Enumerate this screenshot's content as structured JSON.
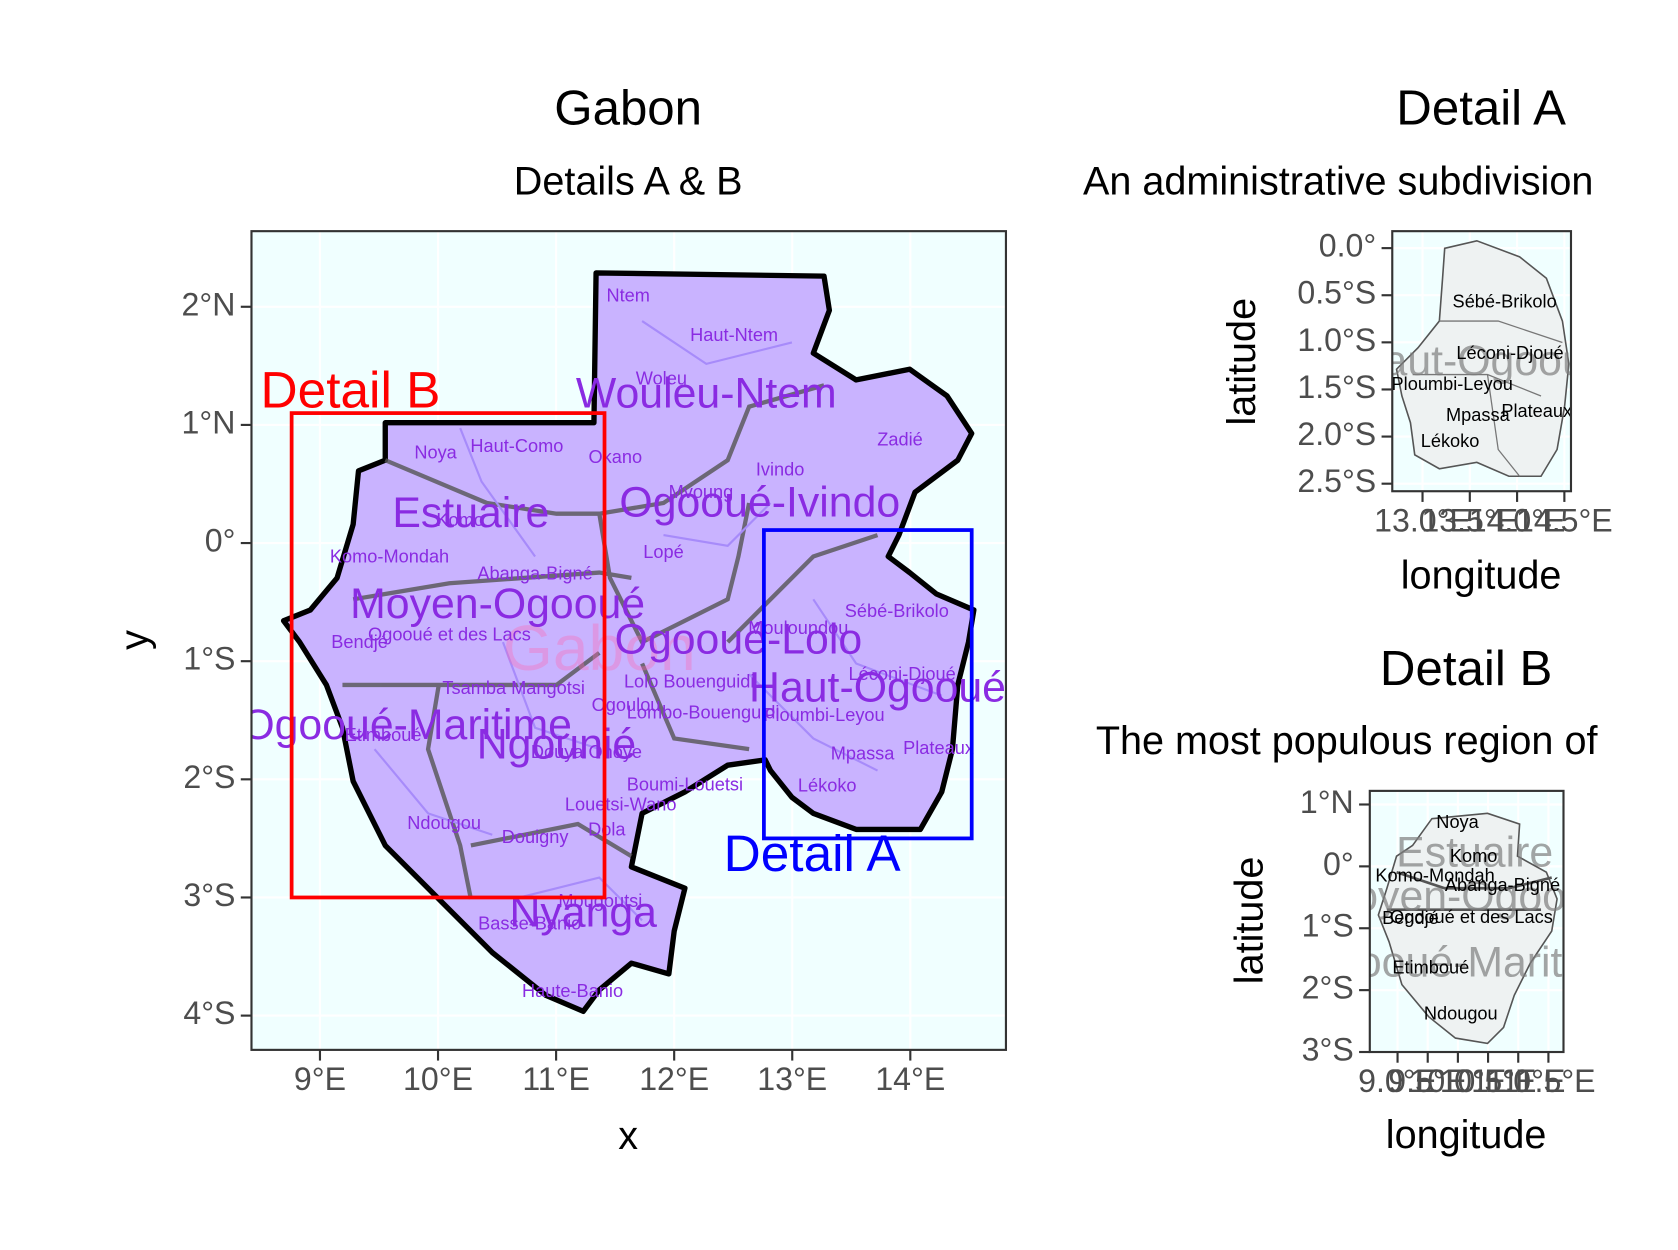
{
  "main_map": {
    "title": "Gabon",
    "subtitle": "Details A & B",
    "x_label": "x",
    "y_label": "y",
    "xlim": [
      8.42,
      14.81
    ],
    "ylim": [
      -4.29,
      2.64
    ],
    "xticks": [
      {
        "value": 9,
        "label": "9°E"
      },
      {
        "value": 10,
        "label": "10°E"
      },
      {
        "value": 11,
        "label": "11°E"
      },
      {
        "value": 12,
        "label": "12°E"
      },
      {
        "value": 13,
        "label": "13°E"
      },
      {
        "value": 14,
        "label": "14°E"
      }
    ],
    "yticks": [
      {
        "value": 2,
        "label": "2°N"
      },
      {
        "value": 1,
        "label": "1°N"
      },
      {
        "value": 0,
        "label": "0°"
      },
      {
        "value": -1,
        "label": "1°S"
      },
      {
        "value": -2,
        "label": "2°S"
      },
      {
        "value": -3,
        "label": "3°S"
      },
      {
        "value": -4,
        "label": "4°S"
      }
    ],
    "country_label": "Gabon",
    "provinces": [
      "Wouleu-Ntem",
      "Estuaire",
      "Ogooué-Ivindo",
      "Moyen-Ogooué",
      "Ogooué-Lolo",
      "Haut-Ogooué",
      "Ogooué-Maritime",
      "Ngounié",
      "Nyanga"
    ],
    "departments": [
      "Ntem",
      "Haut-Ntem",
      "Woleu",
      "Noya",
      "Haut-Como",
      "Okano",
      "Ivindo",
      "Zadié",
      "Mvoung",
      "Komo",
      "Komo-Mondah",
      "Lopé",
      "Abanga-Bigné",
      "Sébé-Brikolo",
      "Mouloundou",
      "Bendjé",
      "Ogooué et des Lacs",
      "Léconi-Djoué",
      "Lolo Bouenguidi",
      "Tsamba Mangotsi",
      "Ogoulou",
      "Lombo-Bouenguidi",
      "Ploumbi-Leyou",
      "Etimboué",
      "Douya Onoye",
      "Mpassa",
      "Plateaux",
      "Lékoko",
      "Boumi-Louetsi",
      "Louetsi-Wano",
      "Ndougou",
      "Douigny",
      "Dola",
      "Mougoutsi",
      "Basse-Banio",
      "Haute-Banio"
    ],
    "detail_boxes": [
      {
        "label": "Detail A",
        "color": "#0000ff",
        "xlim": [
          12.76,
          14.52
        ],
        "ylim": [
          -2.5,
          0.11
        ]
      },
      {
        "label": "Detail B",
        "color": "#ff0000",
        "xlim": [
          8.76,
          11.41
        ],
        "ylim": [
          -3.0,
          1.1
        ]
      }
    ]
  },
  "detail_a": {
    "title": "Detail A",
    "subtitle": "An administrative subdivision",
    "x_label": "longitude",
    "y_label": "latitude",
    "xlim": [
      12.68,
      14.57
    ],
    "ylim": [
      -2.58,
      0.18
    ],
    "xticks": [
      {
        "value": 13.0,
        "label": "13.0°E"
      },
      {
        "value": 13.5,
        "label": "13.5°E"
      },
      {
        "value": 14.0,
        "label": "14.0°E"
      },
      {
        "value": 14.5,
        "label": "14.5°E"
      }
    ],
    "yticks": [
      {
        "value": 0,
        "label": "0.0°"
      },
      {
        "value": -0.5,
        "label": "0.5°S"
      },
      {
        "value": -1.0,
        "label": "1.0°S"
      },
      {
        "value": -1.5,
        "label": "1.5°S"
      },
      {
        "value": -2.0,
        "label": "2.0°S"
      },
      {
        "value": -2.5,
        "label": "2.5°S"
      }
    ],
    "background_label": "Haut-Ogooué",
    "labels": [
      "Sébé-Brikolo",
      "Léconi-Djoué",
      "Ploumbi-Leyou",
      "Mpassa",
      "Plateaux",
      "Lékoko"
    ]
  },
  "detail_b": {
    "title": "Detail B",
    "subtitle": "The most populous region of",
    "x_label": "longitude",
    "y_label": "latitude",
    "xlim": [
      8.54,
      11.75
    ],
    "ylim": [
      -3.0,
      1.22
    ],
    "xticks": [
      {
        "value": 9.0,
        "label": "9.0°E"
      },
      {
        "value": 9.5,
        "label": "9.5°E"
      },
      {
        "value": 10.0,
        "label": "10.0°E"
      },
      {
        "value": 10.5,
        "label": "10.5°E"
      },
      {
        "value": 11.0,
        "label": "11.0°E"
      },
      {
        "value": 11.5,
        "label": "11.5°E"
      }
    ],
    "yticks": [
      {
        "value": 1,
        "label": "1°N"
      },
      {
        "value": 0,
        "label": "0°"
      },
      {
        "value": -1,
        "label": "1°S"
      },
      {
        "value": -2,
        "label": "2°S"
      },
      {
        "value": -3,
        "label": "3°S"
      }
    ],
    "background_labels": [
      "Estuaire",
      "Moyen-Ogooué",
      "Ogooué-Maritime"
    ],
    "labels": [
      "Noya",
      "Komo",
      "Komo-Mondah",
      "Abanga-Bigné",
      "Bendjé",
      "Ogooué et des Lacs",
      "Etimboué",
      "Ndougou"
    ]
  }
}
